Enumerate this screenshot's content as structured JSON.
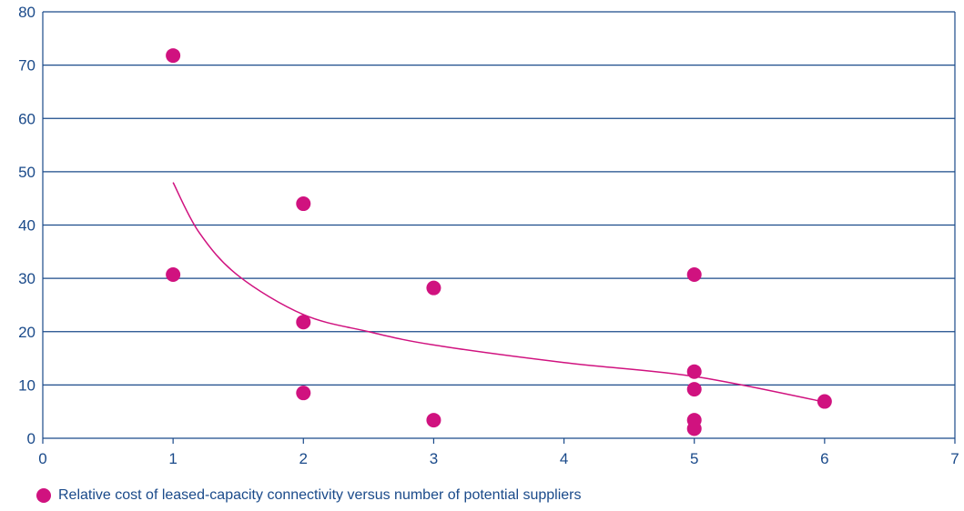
{
  "chart_data": {
    "type": "scatter",
    "xlim": [
      0,
      7
    ],
    "ylim": [
      0,
      80
    ],
    "x_ticks": [
      0,
      1,
      2,
      3,
      4,
      5,
      6,
      7
    ],
    "y_ticks": [
      0,
      10,
      20,
      30,
      40,
      50,
      60,
      70,
      80
    ],
    "grid": "horizontal",
    "legend_position": "bottom-left",
    "colors": {
      "marker": "#d0127f",
      "trendline": "#d0127f",
      "axis": "#1a4a8a",
      "grid": "#1a4a8a"
    },
    "series": [
      {
        "name": "Relative cost of leased-capacity connectivity versus number of potential suppliers",
        "points": [
          {
            "x": 1,
            "y": 71.8
          },
          {
            "x": 1,
            "y": 30.7
          },
          {
            "x": 2,
            "y": 44
          },
          {
            "x": 2,
            "y": 21.8
          },
          {
            "x": 2,
            "y": 8.5
          },
          {
            "x": 3,
            "y": 28.2
          },
          {
            "x": 3,
            "y": 3.4
          },
          {
            "x": 5,
            "y": 30.7
          },
          {
            "x": 5,
            "y": 12.5
          },
          {
            "x": 5,
            "y": 9.2
          },
          {
            "x": 5,
            "y": 3.4
          },
          {
            "x": 5,
            "y": 1.8
          },
          {
            "x": 6,
            "y": 6.9
          }
        ]
      }
    ],
    "trendline": {
      "type": "power",
      "points": [
        {
          "x": 1,
          "y": 48
        },
        {
          "x": 1.2,
          "y": 38.6
        },
        {
          "x": 1.5,
          "y": 30.5
        },
        {
          "x": 2,
          "y": 23.2
        },
        {
          "x": 2.5,
          "y": 20
        },
        {
          "x": 3,
          "y": 17.5
        },
        {
          "x": 4,
          "y": 14.2
        },
        {
          "x": 5,
          "y": 11.6
        },
        {
          "x": 6,
          "y": 6.8
        }
      ]
    }
  }
}
